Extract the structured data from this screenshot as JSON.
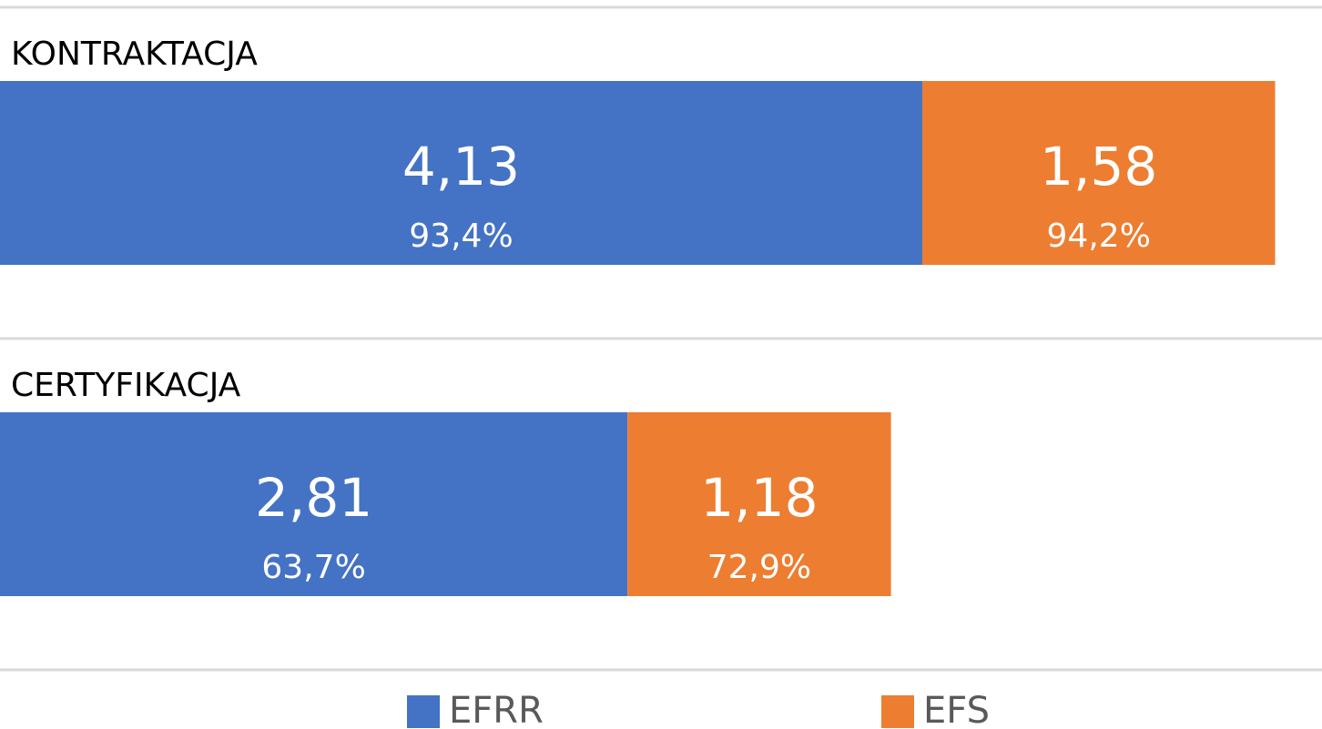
{
  "chart_data": {
    "type": "stacked-bar-horizontal",
    "categories": [
      "KONTRAKTACJA",
      "CERTYFIKACJA"
    ],
    "series": [
      {
        "name": "EFRR",
        "color": "#4472c4",
        "values": [
          4.13,
          2.81
        ],
        "value_labels": [
          "4,13",
          "2,81"
        ],
        "shares": [
          93.4,
          63.7
        ],
        "share_labels": [
          "93,4%",
          "63,7%"
        ]
      },
      {
        "name": "EFS",
        "color": "#ed7d31",
        "values": [
          1.58,
          1.18
        ],
        "value_labels": [
          "1,58",
          "1,18"
        ],
        "shares": [
          94.2,
          72.9
        ],
        "share_labels": [
          "94,2%",
          "72,9%"
        ]
      }
    ],
    "xlim": [
      0,
      5.92
    ],
    "legend": "bottom"
  }
}
